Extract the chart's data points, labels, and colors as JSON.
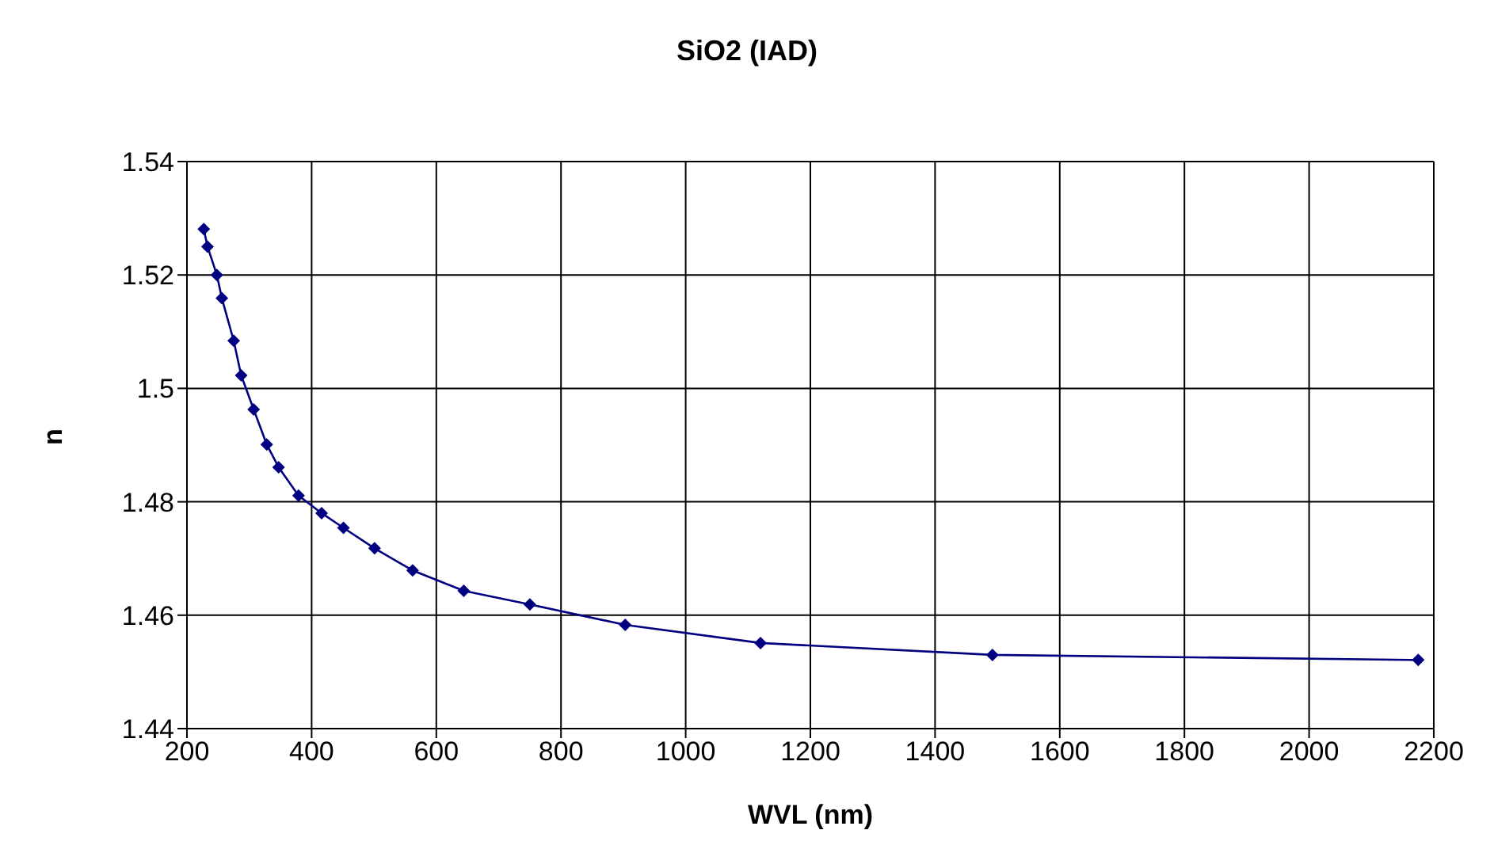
{
  "chart_data": {
    "type": "line",
    "title": "SiO2 (IAD)",
    "xlabel": "WVL (nm)",
    "ylabel": "n",
    "x": [
      227,
      233,
      248,
      256,
      275,
      287,
      307,
      328,
      347,
      379,
      416,
      451,
      501,
      562,
      644,
      750,
      903,
      1120,
      1492,
      2175
    ],
    "series": [
      {
        "color": "#000080",
        "values": [
          1.5281,
          1.525,
          1.52,
          1.5159,
          1.5084,
          1.5023,
          1.4963,
          1.4901,
          1.4861,
          1.4811,
          1.478,
          1.4754,
          1.4718,
          1.4679,
          1.4643,
          1.4619,
          1.4583,
          1.4551,
          1.453,
          1.4521
        ]
      }
    ],
    "xlim": [
      200,
      2200
    ],
    "xticks": [
      200,
      400,
      600,
      800,
      1000,
      1200,
      1400,
      1600,
      1800,
      2000,
      2200
    ],
    "ylim": [
      1.44,
      1.54
    ],
    "yticks": [
      1.44,
      1.46,
      1.48,
      1.5,
      1.52,
      1.54
    ],
    "grid": true,
    "marker": "diamond",
    "line_style": "solid",
    "legend": false
  }
}
